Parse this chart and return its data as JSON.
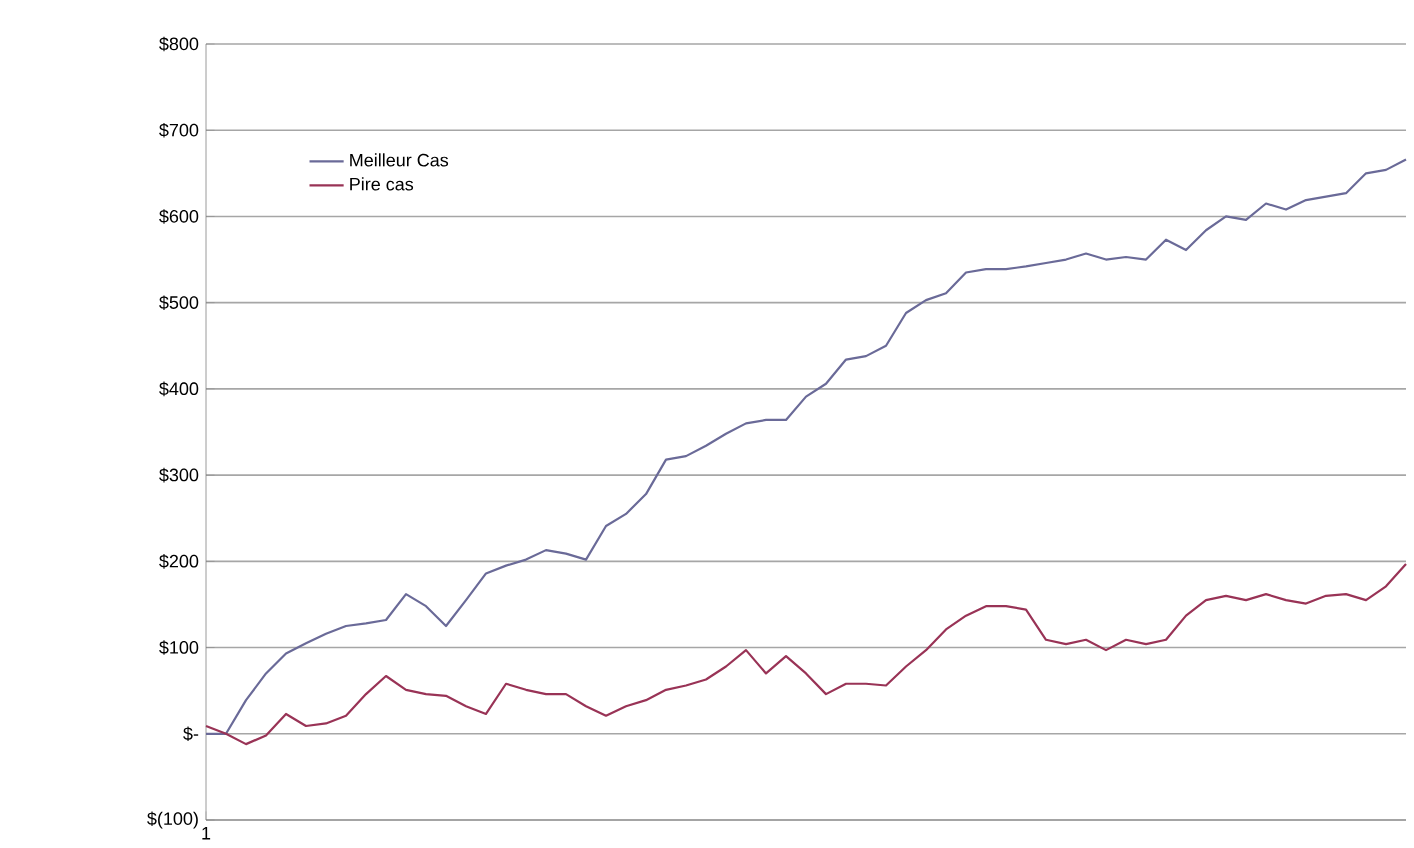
{
  "chart_data": {
    "type": "line",
    "categories": [
      "1",
      null,
      null,
      null,
      null,
      null,
      null,
      null,
      null,
      null,
      null,
      null,
      null,
      null,
      null,
      null,
      null,
      null,
      null,
      null,
      null,
      null,
      null,
      null,
      null,
      null,
      null,
      null,
      null,
      null,
      null,
      null,
      null,
      null,
      null,
      null,
      null,
      null,
      null,
      null,
      null,
      null,
      null,
      null,
      null,
      null,
      null,
      null,
      null,
      null,
      null,
      null,
      null,
      null,
      null,
      null,
      null,
      null,
      null,
      null,
      null
    ],
    "series": [
      {
        "name": "Meilleur Cas",
        "color": "#6a6a98",
        "values": [
          0,
          0,
          39,
          70,
          93,
          105,
          116,
          125,
          128,
          132,
          162,
          148,
          125,
          155,
          186,
          195,
          202,
          213,
          209,
          202,
          241,
          255,
          278,
          318,
          322,
          334,
          348,
          360,
          364,
          364,
          391,
          406,
          434,
          438,
          450,
          488,
          503,
          511,
          535,
          539,
          539,
          542,
          546,
          550,
          557,
          550,
          553,
          550,
          573,
          561,
          584,
          600,
          596,
          615,
          608,
          619,
          623,
          627,
          650,
          654,
          666
        ]
      },
      {
        "name": "Pire cas",
        "color": "#993356",
        "values": [
          9,
          0,
          -12,
          -2,
          23,
          9,
          12,
          21,
          46,
          67,
          51,
          46,
          44,
          32,
          23,
          58,
          51,
          46,
          46,
          32,
          21,
          32,
          39,
          51,
          56,
          63,
          78,
          97,
          70,
          90,
          70,
          46,
          58,
          58,
          56,
          78,
          97,
          121,
          137,
          148,
          148,
          144,
          109,
          104,
          109,
          97,
          109,
          104,
          109,
          137,
          155,
          160,
          155,
          162,
          155,
          151,
          160,
          162,
          155,
          171,
          197
        ]
      }
    ],
    "ylim": [
      -100,
      800
    ],
    "yticks": [
      {
        "value": -100,
        "label": "$(100)"
      },
      {
        "value": 0,
        "label": "$-"
      },
      {
        "value": 100,
        "label": "$100"
      },
      {
        "value": 200,
        "label": "$200"
      },
      {
        "value": 300,
        "label": "$300"
      },
      {
        "value": 400,
        "label": "$400"
      },
      {
        "value": 500,
        "label": "$500"
      },
      {
        "value": 600,
        "label": "$600"
      },
      {
        "value": 700,
        "label": "$700"
      },
      {
        "value": 800,
        "label": "$800"
      }
    ],
    "grid": "y",
    "legend": "top left",
    "marker": "none",
    "line_style": "solid"
  }
}
